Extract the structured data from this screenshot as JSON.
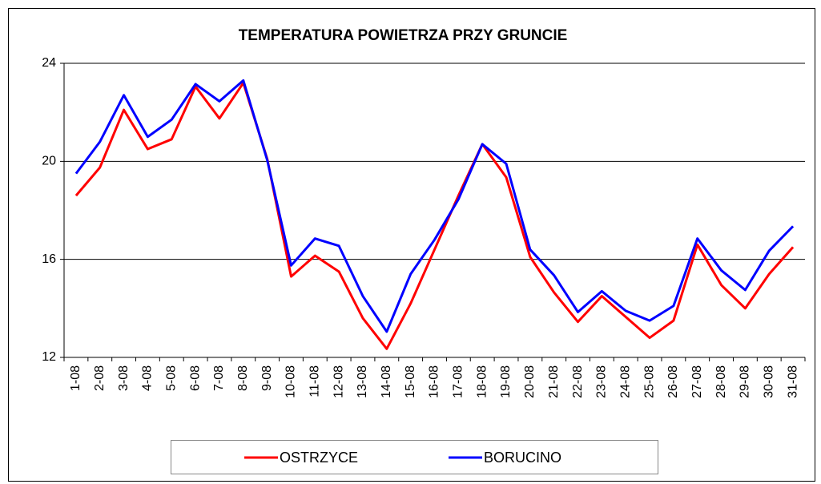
{
  "chart_data": {
    "type": "line",
    "title": "TEMPERATURA POWIETRZA PRZY GRUNCIE",
    "categories": [
      "1-08",
      "2-08",
      "3-08",
      "4-08",
      "5-08",
      "6-08",
      "7-08",
      "8-08",
      "9-08",
      "10-08",
      "11-08",
      "12-08",
      "13-08",
      "14-08",
      "15-08",
      "16-08",
      "17-08",
      "18-08",
      "19-08",
      "20-08",
      "21-08",
      "22-08",
      "23-08",
      "24-08",
      "25-08",
      "26-08",
      "27-08",
      "28-08",
      "29-08",
      "30-08",
      "31-08"
    ],
    "series": [
      {
        "name": "OSTRZYCE",
        "color": "#ff0000",
        "values": [
          18.6,
          19.75,
          22.1,
          20.5,
          20.9,
          23.05,
          21.75,
          23.2,
          20.1,
          15.3,
          16.15,
          15.5,
          13.6,
          12.35,
          14.2,
          16.4,
          18.6,
          20.7,
          19.35,
          16.1,
          14.65,
          13.45,
          14.5,
          13.65,
          12.8,
          13.5,
          16.6,
          14.95,
          14.0,
          15.4,
          16.5
        ]
      },
      {
        "name": "BORUCINO",
        "color": "#0000ff",
        "values": [
          19.5,
          20.8,
          22.7,
          21.0,
          21.7,
          23.15,
          22.45,
          23.3,
          20.05,
          15.75,
          16.85,
          16.55,
          14.5,
          13.05,
          15.4,
          16.8,
          18.45,
          20.7,
          19.9,
          16.4,
          15.35,
          13.85,
          14.7,
          13.9,
          13.5,
          14.1,
          16.85,
          15.55,
          14.75,
          16.35,
          17.35
        ]
      }
    ],
    "ylim": [
      12,
      24
    ],
    "yticks": [
      12,
      16,
      20,
      24
    ],
    "grid": true,
    "legend": "bottom"
  }
}
